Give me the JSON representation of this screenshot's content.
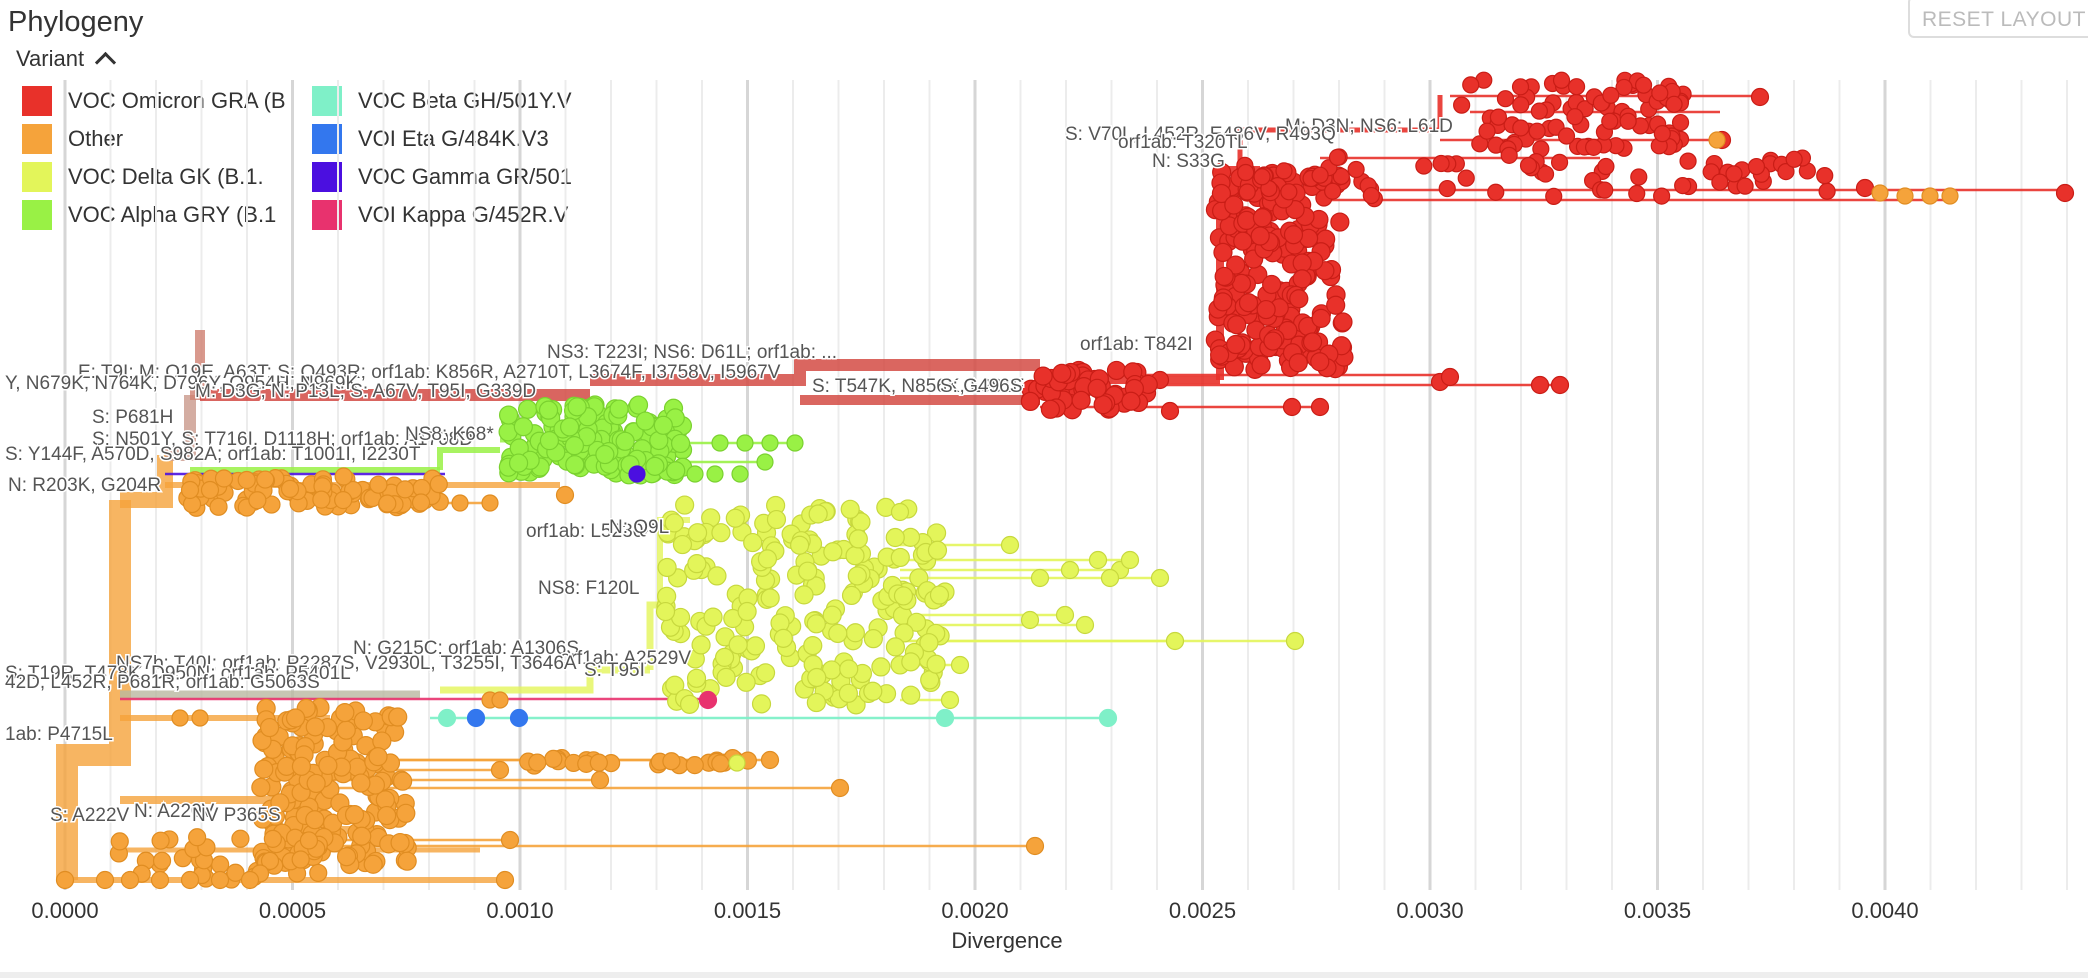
{
  "panel": {
    "title": "Phylogeny",
    "reset_label": "RESET LAYOUT"
  },
  "legend": {
    "title": "Variant",
    "items": [
      {
        "label": "VOC Omicron GRA (B",
        "color": "#e8312a"
      },
      {
        "label": "Other",
        "color": "#f5a33b"
      },
      {
        "label": "VOC Delta GK (B.1.",
        "color": "#e3f55a"
      },
      {
        "label": "VOC Alpha GRY (B.1",
        "color": "#99f145"
      },
      {
        "label": "VOC Beta GH/501Y.V",
        "color": "#7ff0c8"
      },
      {
        "label": "VOI Eta G/484K.V3",
        "color": "#3377ee"
      },
      {
        "label": "VOC Gamma GR/501",
        "color": "#4b0fe0"
      },
      {
        "label": "VOI Kappa G/452R.V",
        "color": "#e8326e"
      }
    ]
  },
  "axis": {
    "label": "Divergence",
    "ticks": [
      "0.0000",
      "0.0005",
      "0.0010",
      "0.0015",
      "0.0020",
      "0.0025",
      "0.0030",
      "0.0035",
      "0.0040"
    ]
  },
  "branch_labels": [
    "M: D3N; NS6: L61D",
    "S: V70L, L452R, E486V, R493Q",
    "orf1ab: T320TL",
    "N: S33G",
    "NS3: T223I; NS6: D61L; orf1ab: ...",
    "S: T547K, N856K, L981F",
    "S: G496S",
    "orf1ab: T842I",
    "E: T9I; M: Q19E, A63T; S: Q493R; orf1ab: K856R, A2710T, L3674F, I3758V, I5967V",
    "Y, N679K, N764K, D796Y, Q954H, N969K",
    "M: D3G; N: P13L; S: A67V, T95I, G339D",
    "S: P681H",
    "S: N501Y, S: T716I, D1118H; orf1ab: A1708D",
    "NS8: K68*",
    "S: Y144F, A570D, S982A; orf1ab: T1001I, I2230T",
    "N: R203K, G204R",
    "orf1ab: L5230F",
    "N: Q9L",
    "NS8: F120L",
    "N: G215C; orf1ab: A1306S",
    "orf1ab: A2529V",
    "NS7b: T40I; orf1ab: P2287S, V2930L, T3255I, T3646A",
    "S: T19R, T478K, D950N; orf1ab: P5401L",
    "42D, L452R, P681R; orf1ab: G5063S",
    "S: T95I",
    "1ab: P4715L",
    "S: A222V",
    "N: A220V",
    "NV P365S"
  ]
}
